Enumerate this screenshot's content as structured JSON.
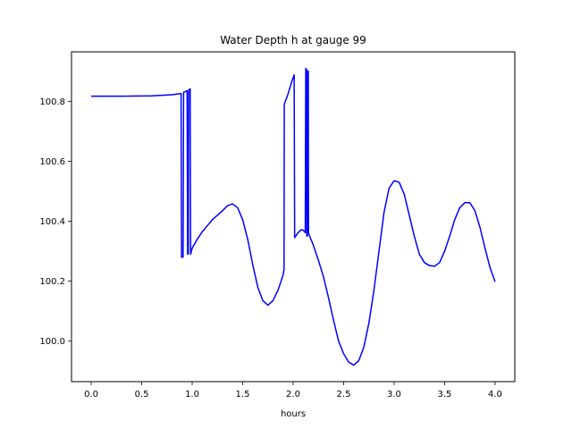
{
  "chart_data": {
    "type": "line",
    "title": "Water Depth h at gauge 99",
    "xlabel": "hours",
    "ylabel": "",
    "xlim": [
      -0.195,
      4.195
    ],
    "ylim": [
      99.865,
      100.965
    ],
    "xticks": [
      0.0,
      0.5,
      1.0,
      1.5,
      2.0,
      2.5,
      3.0,
      3.5,
      4.0
    ],
    "xtick_labels": [
      "0.0",
      "0.5",
      "1.0",
      "1.5",
      "2.0",
      "2.5",
      "3.0",
      "3.5",
      "4.0"
    ],
    "yticks": [
      100.0,
      100.2,
      100.4,
      100.6,
      100.8
    ],
    "ytick_labels": [
      "100.0",
      "100.2",
      "100.4",
      "100.6",
      "100.8"
    ],
    "grid": false,
    "legend": "none",
    "series": [
      {
        "color": "#0000ff",
        "points": [
          [
            0.0,
            100.817
          ],
          [
            0.3,
            100.817
          ],
          [
            0.6,
            100.818
          ],
          [
            0.8,
            100.822
          ],
          [
            0.89,
            100.826
          ],
          [
            0.895,
            100.28
          ],
          [
            0.91,
            100.28
          ],
          [
            0.915,
            100.83
          ],
          [
            0.95,
            100.835
          ],
          [
            0.955,
            100.29
          ],
          [
            0.962,
            100.29
          ],
          [
            0.965,
            100.837
          ],
          [
            0.98,
            100.842
          ],
          [
            0.985,
            100.29
          ],
          [
            1.0,
            100.31
          ],
          [
            1.05,
            100.34
          ],
          [
            1.1,
            100.365
          ],
          [
            1.15,
            100.385
          ],
          [
            1.2,
            100.405
          ],
          [
            1.25,
            100.42
          ],
          [
            1.3,
            100.435
          ],
          [
            1.35,
            100.452
          ],
          [
            1.4,
            100.458
          ],
          [
            1.45,
            100.445
          ],
          [
            1.5,
            100.405
          ],
          [
            1.55,
            100.34
          ],
          [
            1.6,
            100.255
          ],
          [
            1.65,
            100.18
          ],
          [
            1.7,
            100.135
          ],
          [
            1.75,
            100.12
          ],
          [
            1.8,
            100.135
          ],
          [
            1.85,
            100.17
          ],
          [
            1.9,
            100.22
          ],
          [
            1.91,
            100.24
          ],
          [
            1.912,
            100.79
          ],
          [
            1.95,
            100.825
          ],
          [
            1.99,
            100.87
          ],
          [
            2.01,
            100.888
          ],
          [
            2.015,
            100.345
          ],
          [
            2.05,
            100.362
          ],
          [
            2.08,
            100.372
          ],
          [
            2.1,
            100.37
          ],
          [
            2.12,
            100.362
          ],
          [
            2.125,
            100.91
          ],
          [
            2.132,
            100.905
          ],
          [
            2.135,
            100.35
          ],
          [
            2.14,
            100.35
          ],
          [
            2.142,
            100.902
          ],
          [
            2.15,
            100.9
          ],
          [
            2.152,
            100.36
          ],
          [
            2.2,
            100.32
          ],
          [
            2.25,
            100.27
          ],
          [
            2.3,
            100.215
          ],
          [
            2.35,
            100.145
          ],
          [
            2.4,
            100.07
          ],
          [
            2.45,
            100.0
          ],
          [
            2.5,
            99.958
          ],
          [
            2.55,
            99.93
          ],
          [
            2.6,
            99.92
          ],
          [
            2.65,
            99.935
          ],
          [
            2.7,
            99.98
          ],
          [
            2.75,
            100.06
          ],
          [
            2.8,
            100.17
          ],
          [
            2.85,
            100.3
          ],
          [
            2.9,
            100.43
          ],
          [
            2.95,
            100.51
          ],
          [
            3.0,
            100.535
          ],
          [
            3.05,
            100.53
          ],
          [
            3.1,
            100.49
          ],
          [
            3.15,
            100.42
          ],
          [
            3.2,
            100.35
          ],
          [
            3.25,
            100.29
          ],
          [
            3.3,
            100.262
          ],
          [
            3.35,
            100.252
          ],
          [
            3.4,
            100.25
          ],
          [
            3.45,
            100.262
          ],
          [
            3.5,
            100.3
          ],
          [
            3.55,
            100.35
          ],
          [
            3.6,
            100.405
          ],
          [
            3.65,
            100.445
          ],
          [
            3.7,
            100.462
          ],
          [
            3.75,
            100.462
          ],
          [
            3.8,
            100.435
          ],
          [
            3.85,
            100.38
          ],
          [
            3.9,
            100.31
          ],
          [
            3.95,
            100.245
          ],
          [
            4.0,
            100.198
          ]
        ]
      }
    ]
  }
}
